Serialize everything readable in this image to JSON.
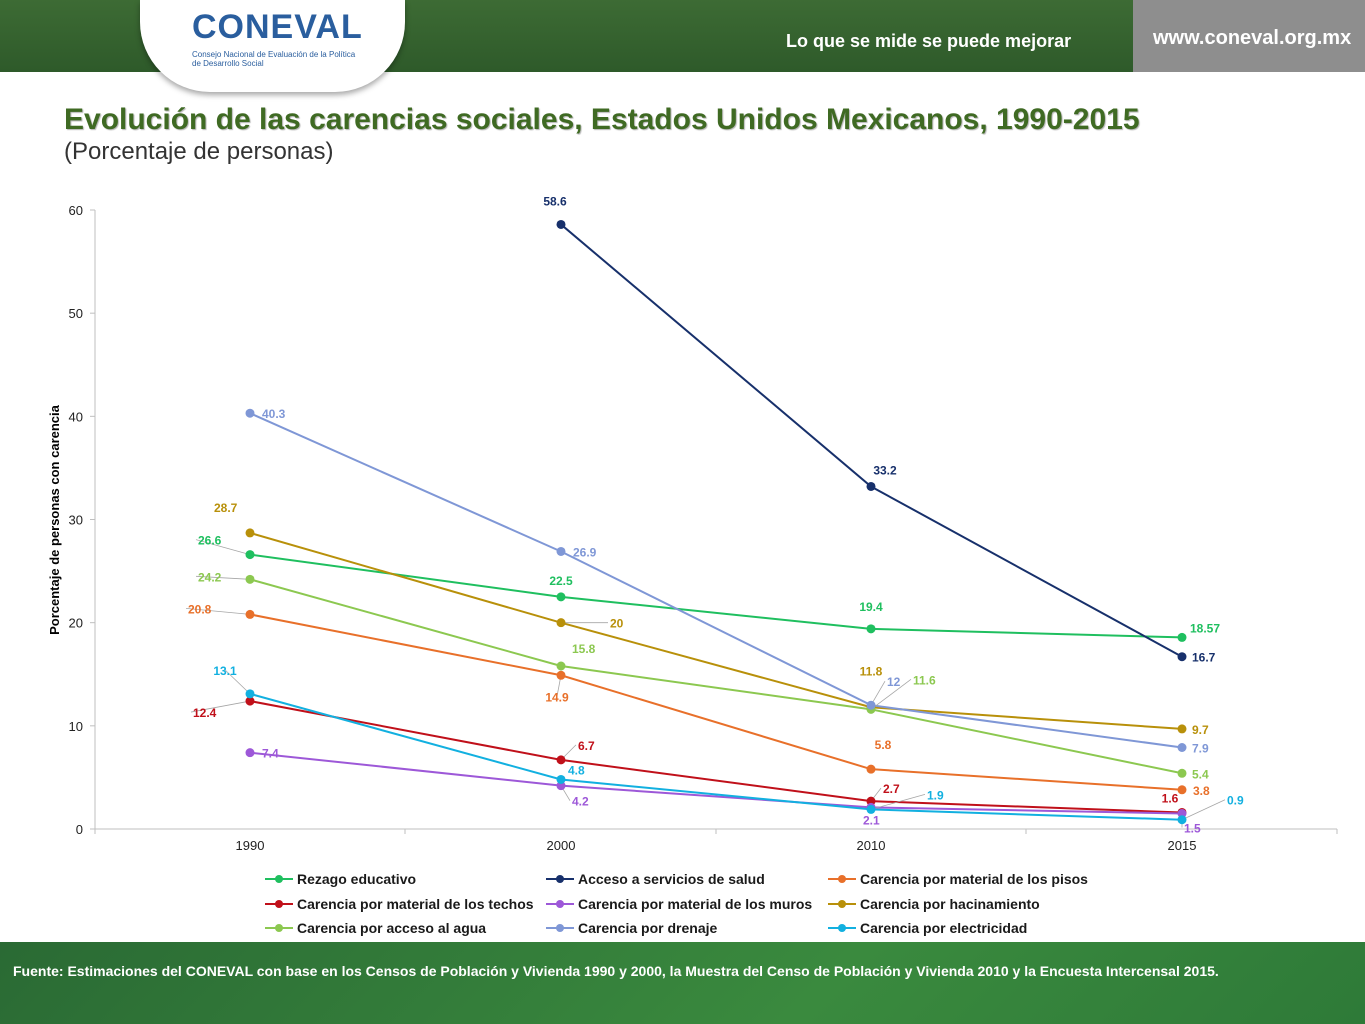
{
  "header": {
    "logo_text": "CONEVAL",
    "logo_subtitle": "Consejo Nacional de Evaluación de la Política de Desarrollo Social",
    "slogan": "Lo que se mide se puede mejorar",
    "url": "www.coneval.org.mx",
    "bar_color": "#2e5a2a",
    "url_box_color": "#8e8e8e"
  },
  "slide": {
    "title": "Evolución de las carencias sociales, Estados Unidos Mexicanos, 1990-2015",
    "subtitle": "(Porcentaje de personas)"
  },
  "chart_data": {
    "type": "line",
    "title": "",
    "xlabel": "",
    "ylabel": "Porcentaje de personas con carencia",
    "x": [
      "1990",
      "2000",
      "2010",
      "2015"
    ],
    "ylim": [
      0,
      60
    ],
    "yticks": [
      "0",
      "10",
      "20",
      "30",
      "40",
      "50",
      "60"
    ],
    "grid": false,
    "legend_position": "bottom",
    "series": [
      {
        "name": "Rezago educativo",
        "color": "#1fbf5f",
        "values": [
          26.6,
          22.5,
          19.4,
          18.57
        ],
        "labels": [
          "26.6",
          "22.5",
          "19.4",
          "18.57"
        ]
      },
      {
        "name": "Acceso a servicios de salud",
        "color": "#17306b",
        "values": [
          null,
          58.6,
          33.2,
          16.7
        ],
        "labels": [
          null,
          "58.6",
          "33.2",
          "16.7"
        ]
      },
      {
        "name": "Carencia por material de los pisos",
        "color": "#e8702a",
        "values": [
          20.8,
          14.9,
          5.8,
          3.8
        ],
        "labels": [
          "20.8",
          "14.9",
          "5.8",
          "3.8"
        ]
      },
      {
        "name": "Carencia por material de los techos",
        "color": "#c0101a",
        "values": [
          12.4,
          6.7,
          2.7,
          1.6
        ],
        "labels": [
          "12.4",
          "6.7",
          "2.7",
          "1.6"
        ]
      },
      {
        "name": "Carencia  por material de los muros",
        "color": "#9d58d8",
        "values": [
          7.4,
          4.2,
          2.1,
          1.5
        ],
        "labels": [
          "7.4",
          "4.2",
          "2.1",
          "1.5"
        ]
      },
      {
        "name": "Carencia por hacinamiento",
        "color": "#b8900a",
        "values": [
          28.7,
          20,
          11.8,
          9.7
        ],
        "labels": [
          "28.7",
          "20",
          "11.8",
          "9.7"
        ]
      },
      {
        "name": "Carencia por acceso al agua",
        "color": "#8cc850",
        "values": [
          24.2,
          15.8,
          11.6,
          5.4
        ],
        "labels": [
          "24.2",
          "15.8",
          "11.6",
          "5.4"
        ]
      },
      {
        "name": "Carencia por drenaje",
        "color": "#7f97d6",
        "values": [
          40.3,
          26.9,
          12,
          7.9
        ],
        "labels": [
          "40.3",
          "26.9",
          "12",
          "7.9"
        ]
      },
      {
        "name": "Carencia por electricidad",
        "color": "#12b0e0",
        "values": [
          13.1,
          4.8,
          1.9,
          0.9
        ],
        "labels": [
          "13.1",
          "4.8",
          "1.9",
          "0.9"
        ]
      }
    ]
  },
  "footer": {
    "source": "Fuente: Estimaciones del CONEVAL con base en los Censos de Población y Vivienda 1990 y 2000, la Muestra del Censo de Población y Vivienda 2010 y la Encuesta Intercensal 2015."
  }
}
